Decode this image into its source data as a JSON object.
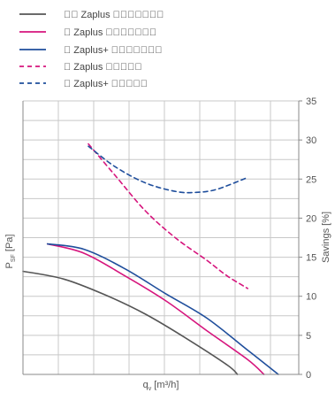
{
  "chart_data": {
    "type": "line",
    "xlabel": "q",
    "xlabel_sub": "v",
    "xlabel_unit": "[m³/h]",
    "ylabel_left": "P",
    "ylabel_left_sub": "SF",
    "ylabel_left_unit": "[Pa]",
    "ylabel_right": "Savings [%]",
    "y_right_ticks": [
      "0",
      "5",
      "10",
      "15",
      "20",
      "25",
      "30",
      "35"
    ],
    "ylim_right": [
      0,
      35
    ],
    "grid": true,
    "legend_position": "top-left",
    "series": [
      {
        "name": "\u0000\u0000 Zaplus \u0000\u0000\u0000\u0000\u0000\u0000\u0000",
        "color": "#555555",
        "dash": "solid",
        "axis": "right",
        "points": [
          [
            0.0,
            13.2
          ],
          [
            0.2,
            12.2
          ],
          [
            0.4,
            10.2
          ],
          [
            0.6,
            7.7
          ],
          [
            0.8,
            4.6
          ],
          [
            1.0,
            1.2
          ],
          [
            1.05,
            0
          ]
        ]
      },
      {
        "name": "\u0000 Zaplus \u0000\u0000\u0000\u0000\u0000\u0000\u0000",
        "color": "#d6157d",
        "dash": "solid",
        "axis": "right",
        "points": [
          [
            0.12,
            16.7
          ],
          [
            0.3,
            15.5
          ],
          [
            0.5,
            12.6
          ],
          [
            0.7,
            9.4
          ],
          [
            0.9,
            5.6
          ],
          [
            1.1,
            1.9
          ],
          [
            1.18,
            0
          ]
        ]
      },
      {
        "name": "\u0000 Zaplus+ \u0000\u0000\u0000\u0000\u0000\u0000\u0000",
        "color": "#1f4e9c",
        "dash": "solid",
        "axis": "right",
        "points": [
          [
            0.12,
            16.7
          ],
          [
            0.3,
            16.0
          ],
          [
            0.5,
            13.5
          ],
          [
            0.7,
            10.3
          ],
          [
            0.9,
            7.2
          ],
          [
            1.1,
            3.1
          ],
          [
            1.25,
            0
          ]
        ]
      },
      {
        "name": "\u0000 Zaplus \u0000\u0000\u0000\u0000\u0000",
        "color": "#d6157d",
        "dash": "dashed",
        "axis": "right",
        "points": [
          [
            0.32,
            29.5
          ],
          [
            0.45,
            25.5
          ],
          [
            0.6,
            20.9
          ],
          [
            0.75,
            17.4
          ],
          [
            0.9,
            14.6
          ],
          [
            1.0,
            12.6
          ],
          [
            1.1,
            11.0
          ]
        ]
      },
      {
        "name": "\u0000 Zaplus+ \u0000\u0000\u0000\u0000\u0000",
        "color": "#1f4e9c",
        "dash": "dashed",
        "axis": "right",
        "points": [
          [
            0.32,
            29.2
          ],
          [
            0.45,
            26.6
          ],
          [
            0.6,
            24.5
          ],
          [
            0.75,
            23.4
          ],
          [
            0.85,
            23.3
          ],
          [
            0.95,
            23.7
          ],
          [
            1.1,
            25.2
          ]
        ]
      }
    ]
  }
}
